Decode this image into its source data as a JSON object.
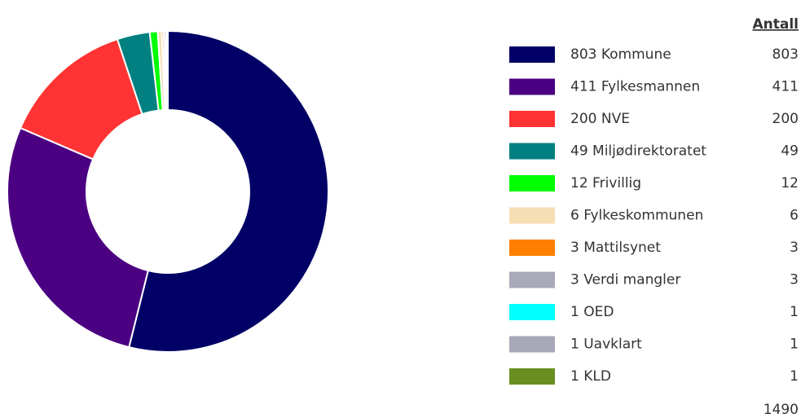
{
  "chart_data": {
    "type": "donut",
    "value_header": "Antall",
    "categories": [
      "803 Kommune",
      "411 Fylkesmannen",
      "200 NVE",
      "49 Miljødirektoratet",
      "12 Frivillig",
      "6 Fylkeskommunen",
      "3 Mattilsynet",
      "3 Verdi mangler",
      "1 OED",
      "1 Uavklart",
      "1 KLD"
    ],
    "values": [
      803,
      411,
      200,
      49,
      12,
      6,
      3,
      3,
      1,
      1,
      1
    ],
    "colors": [
      "#000066",
      "#4b0082",
      "#ff3333",
      "#008080",
      "#00ff00",
      "#f5deb3",
      "#ff8000",
      "#aaa9b9",
      "#00ffff",
      "#a9a8b8",
      "#6b8e23"
    ],
    "total": 1490
  }
}
